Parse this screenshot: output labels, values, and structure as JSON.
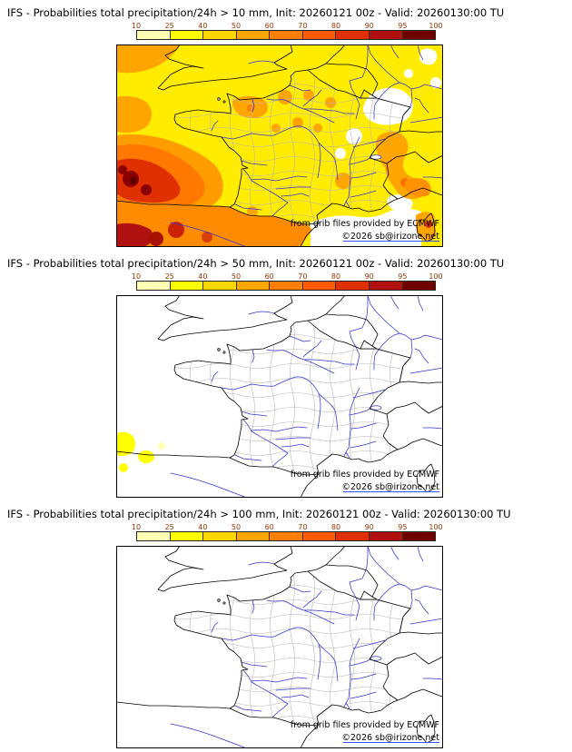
{
  "panels": [
    {
      "title": "IFS - Probabilities total precipitation/24h > 10 mm, Init: 20260121 00z - Valid: 20260130:00 TU",
      "threshold": "10 mm"
    },
    {
      "title": "IFS - Probabilities total precipitation/24h > 50 mm, Init: 20260121 00z - Valid: 20260130:00 TU",
      "threshold": "50 mm"
    },
    {
      "title": "IFS - Probabilities total precipitation/24h > 100 mm, Init: 20260121 00z - Valid: 20260130:00 TU",
      "threshold": "100 mm"
    }
  ],
  "colorbar": {
    "tick_labels": [
      "10",
      "25",
      "40",
      "50",
      "60",
      "70",
      "80",
      "90",
      "95",
      "100"
    ],
    "segment_colors": [
      "#ffffb3",
      "#ffff00",
      "#ffd700",
      "#ffa500",
      "#ff8000",
      "#ff5a00",
      "#e03000",
      "#b01010",
      "#700000"
    ],
    "tick_color": "#993300"
  },
  "map": {
    "attribution_line1": "from grib files provided by ECMWF",
    "attribution_line2": "©2026 sb@irizone.net"
  },
  "colors": {
    "border": "#000000",
    "river": "#3535cf",
    "department": "#b5b5b5",
    "link_underline": "#3355ff",
    "background": "#ffffff"
  }
}
